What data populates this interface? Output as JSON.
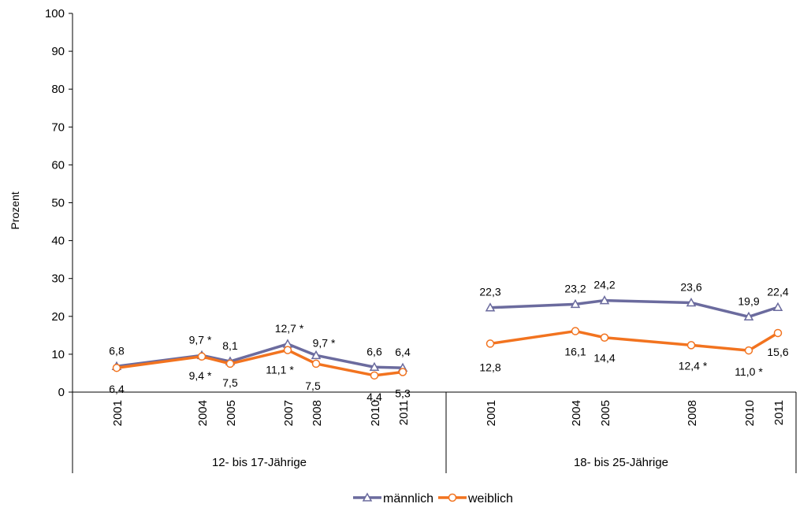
{
  "chart_data": {
    "type": "line",
    "ylabel": "Prozent",
    "ylim": [
      0,
      100
    ],
    "yticks": [
      "0",
      "10",
      "20",
      "30",
      "40",
      "50",
      "60",
      "70",
      "80",
      "90",
      "100"
    ],
    "groups": [
      {
        "label": "12- bis 17-Jährige",
        "years": [
          "2001",
          "2004",
          "2005",
          "2007",
          "2008",
          "2010",
          "2011"
        ],
        "series": [
          {
            "name": "männlich",
            "values": [
              6.8,
              9.7,
              8.1,
              12.7,
              9.7,
              6.6,
              6.4
            ],
            "labels": [
              "6,8",
              "9,7 *",
              "8,1",
              "12,7 *",
              "9,7 *",
              "6,6",
              "6,4"
            ]
          },
          {
            "name": "weiblich",
            "values": [
              6.4,
              9.4,
              7.5,
              11.1,
              7.5,
              4.4,
              5.3
            ],
            "labels": [
              "6,4",
              "9,4 *",
              "7,5",
              "11,1 *",
              "7,5",
              "4,4",
              "5,3"
            ]
          }
        ]
      },
      {
        "label": "18- bis 25-Jährige",
        "years": [
          "2001",
          "2004",
          "2005",
          "2008",
          "2010",
          "2011"
        ],
        "series": [
          {
            "name": "männlich",
            "values": [
              22.3,
              23.2,
              24.2,
              23.6,
              19.9,
              22.4
            ],
            "labels": [
              "22,3",
              "23,2",
              "24,2",
              "23,6",
              "19,9",
              "22,4"
            ]
          },
          {
            "name": "weiblich",
            "values": [
              12.8,
              16.1,
              14.4,
              12.4,
              11.0,
              15.6
            ],
            "labels": [
              "12,8",
              "16,1",
              "14,4",
              "12,4 *",
              "11,0 *",
              "15,6"
            ]
          }
        ]
      }
    ],
    "legend": {
      "position": "bottom-center",
      "items": [
        {
          "name": "männlich",
          "color": "#6b6b9e",
          "marker": "triangle"
        },
        {
          "name": "weiblich",
          "color": "#f2731f",
          "marker": "circle"
        }
      ]
    },
    "grid": false,
    "colors": {
      "maennlich": "#6b6b9e",
      "weiblich": "#f2731f"
    }
  }
}
